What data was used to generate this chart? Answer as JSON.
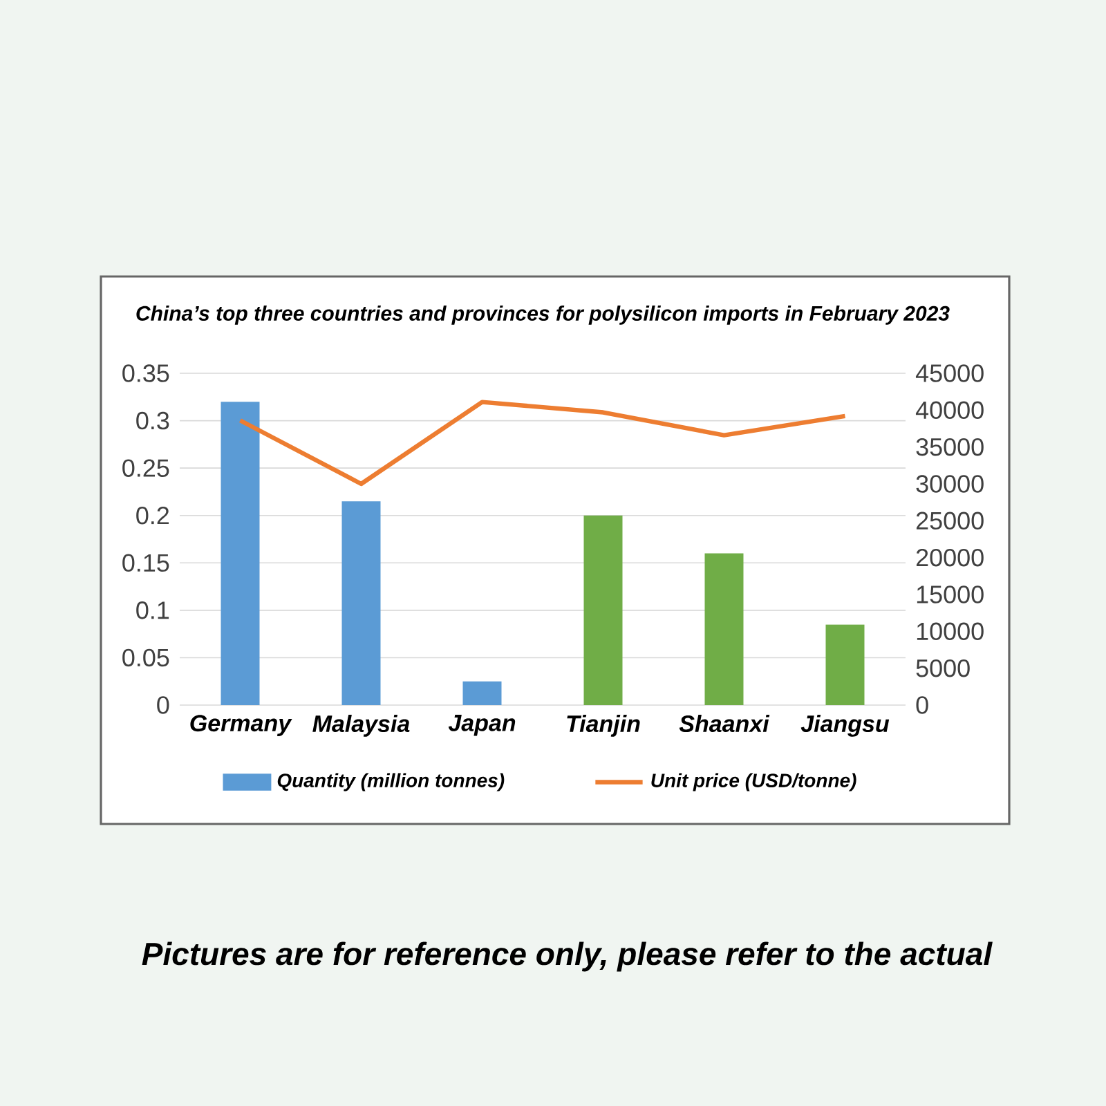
{
  "chart_data": {
    "type": "bar",
    "title": "China’s top three countries and provinces for polysilicon imports in February 2023",
    "categories": [
      "Germany",
      "Malaysia",
      "Japan",
      "Tianjin",
      "Shaanxi",
      "Jiangsu"
    ],
    "series": [
      {
        "name": "Quantity (million tonnes)",
        "color": "#5b9bd5",
        "colors": [
          "#5b9bd5",
          "#5b9bd5",
          "#5b9bd5",
          "#70ad47",
          "#70ad47",
          "#70ad47"
        ],
        "values": [
          0.32,
          0.215,
          0.025,
          0.2,
          0.16,
          0.085
        ]
      },
      {
        "name": "Unit price (USD/tonne)",
        "type": "line",
        "axis": "y2",
        "color": "#ed7d31",
        "values": [
          38600,
          30000,
          41100,
          39700,
          36600,
          39200
        ]
      }
    ],
    "ylim": [
      0,
      0.35
    ],
    "yticks": [
      0,
      0.05,
      0.1,
      0.15,
      0.2,
      0.25,
      0.3,
      0.35
    ],
    "y2lim": [
      0,
      45000
    ],
    "y2ticks": [
      0,
      5000,
      10000,
      15000,
      20000,
      25000,
      30000,
      35000,
      40000,
      45000
    ],
    "grid": "y",
    "legend": "bottom",
    "marker": "none",
    "annotations": [
      "Pictures are for reference only, please refer to the actual"
    ]
  }
}
